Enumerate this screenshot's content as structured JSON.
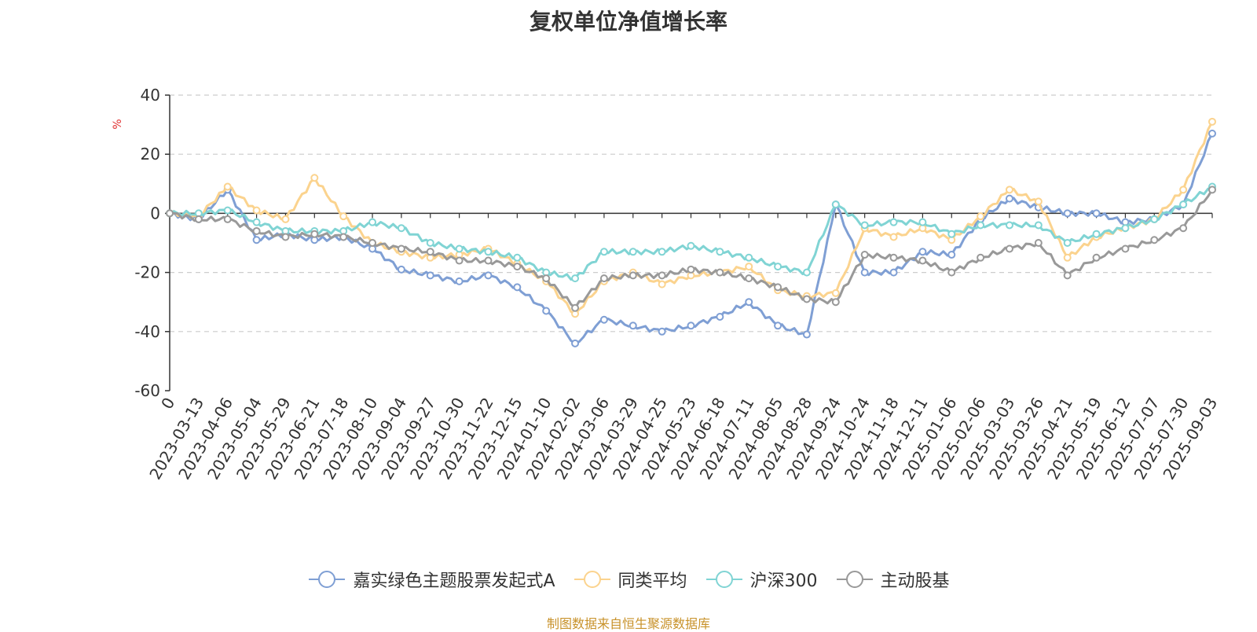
{
  "chart_data": {
    "type": "line",
    "title": "复权单位净值增长率",
    "ylabel": "%",
    "ylim": [
      -60,
      40
    ],
    "yticks": [
      40,
      20,
      0,
      -20,
      -40,
      -60
    ],
    "grid": true,
    "legend_position": "bottom",
    "x_labels": [
      "0",
      "2023-03-13",
      "2023-04-06",
      "2023-05-04",
      "2023-05-29",
      "2023-06-21",
      "2023-07-18",
      "2023-08-10",
      "2023-09-04",
      "2023-09-27",
      "2023-10-30",
      "2023-11-22",
      "2023-12-15",
      "2024-01-10",
      "2024-02-02",
      "2024-03-06",
      "2024-03-29",
      "2024-04-25",
      "2024-05-23",
      "2024-06-18",
      "2024-07-11",
      "2024-08-05",
      "2024-08-28",
      "2024-09-24",
      "2024-10-24",
      "2024-11-18",
      "2024-12-11",
      "2025-01-06",
      "2025-02-06",
      "2025-03-03",
      "2025-03-26",
      "2025-04-21",
      "2025-05-19",
      "2025-06-12",
      "2025-07-07",
      "2025-07-30",
      "2025-09-03"
    ],
    "series": [
      {
        "name": "嘉实绿色主题股票发起式A",
        "color": "#7f9fd4",
        "values": [
          0,
          -2,
          8,
          -9,
          -7,
          -9,
          -8,
          -12,
          -19,
          -21,
          -23,
          -21,
          -25,
          -33,
          -44,
          -36,
          -38,
          -40,
          -38,
          -35,
          -30,
          -38,
          -41,
          3,
          -20,
          -20,
          -13,
          -14,
          -2,
          5,
          2,
          0,
          0,
          -3,
          -2,
          3,
          27
        ]
      },
      {
        "name": "同类平均",
        "color": "#fbd38e",
        "values": [
          0,
          -1,
          9,
          1,
          -2,
          12,
          -1,
          -10,
          -13,
          -15,
          -14,
          -12,
          -17,
          -23,
          -34,
          -23,
          -20,
          -24,
          -21,
          -20,
          -18,
          -26,
          -28,
          -27,
          -5,
          -8,
          -5,
          -9,
          -1,
          8,
          4,
          -15,
          -8,
          -5,
          -2,
          8,
          31
        ]
      },
      {
        "name": "沪深300",
        "color": "#80d4d4",
        "values": [
          0,
          0,
          1,
          -3,
          -6,
          -6,
          -6,
          -3,
          -5,
          -10,
          -12,
          -13,
          -15,
          -20,
          -22,
          -13,
          -13,
          -13,
          -11,
          -13,
          -15,
          -18,
          -20,
          3,
          -4,
          -3,
          -3,
          -7,
          -4,
          -4,
          -4,
          -10,
          -7,
          -5,
          -2,
          3,
          9
        ]
      },
      {
        "name": "主动股基",
        "color": "#999999",
        "values": [
          0,
          -2,
          -2,
          -6,
          -8,
          -7,
          -8,
          -10,
          -12,
          -13,
          -16,
          -16,
          -18,
          -22,
          -32,
          -22,
          -21,
          -21,
          -19,
          -20,
          -22,
          -25,
          -29,
          -30,
          -14,
          -15,
          -16,
          -20,
          -15,
          -12,
          -10,
          -21,
          -15,
          -12,
          -9,
          -5,
          8
        ]
      }
    ]
  },
  "legend": {
    "items": [
      {
        "label": "嘉实绿色主题股票发起式A",
        "color": "#7f9fd4"
      },
      {
        "label": "同类平均",
        "color": "#fbd38e"
      },
      {
        "label": "沪深300",
        "color": "#80d4d4"
      },
      {
        "label": "主动股基",
        "color": "#999999"
      }
    ]
  },
  "footer": {
    "source": "制图数据来自恒生聚源数据库"
  }
}
